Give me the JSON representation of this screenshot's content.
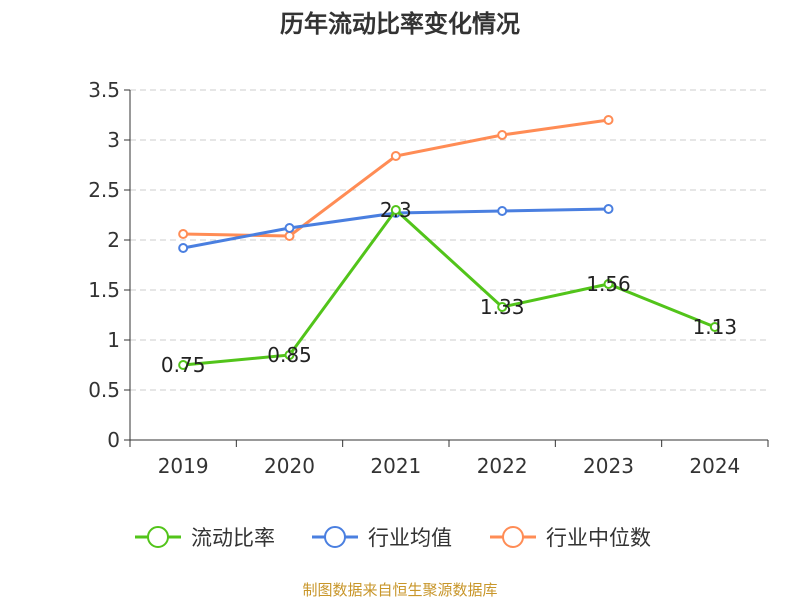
{
  "chart_data": {
    "type": "line",
    "title": "历年流动比率变化情况",
    "categories": [
      "2019",
      "2020",
      "2021",
      "2022",
      "2023",
      "2024"
    ],
    "ylim": [
      0,
      3.5
    ],
    "yticks": [
      "0",
      "0.5",
      "1",
      "1.5",
      "2",
      "2.5",
      "3",
      "3.5"
    ],
    "grid": true,
    "legend_position": "bottom",
    "series": [
      {
        "name": "流动比率",
        "color": "#52c41a",
        "values": [
          0.75,
          0.85,
          2.3,
          1.33,
          1.56,
          1.13
        ],
        "labels": [
          "0.75",
          "0.85",
          "2.3",
          "1.33",
          "1.56",
          "1.13"
        ]
      },
      {
        "name": "行业均值",
        "color": "#4a7fe0",
        "values": [
          1.92,
          2.12,
          2.27,
          2.29,
          2.31,
          null
        ]
      },
      {
        "name": "行业中位数",
        "color": "#ff8c55",
        "values": [
          2.06,
          2.04,
          2.84,
          3.05,
          3.2,
          null
        ]
      }
    ]
  },
  "footer": "制图数据来自恒生聚源数据库"
}
